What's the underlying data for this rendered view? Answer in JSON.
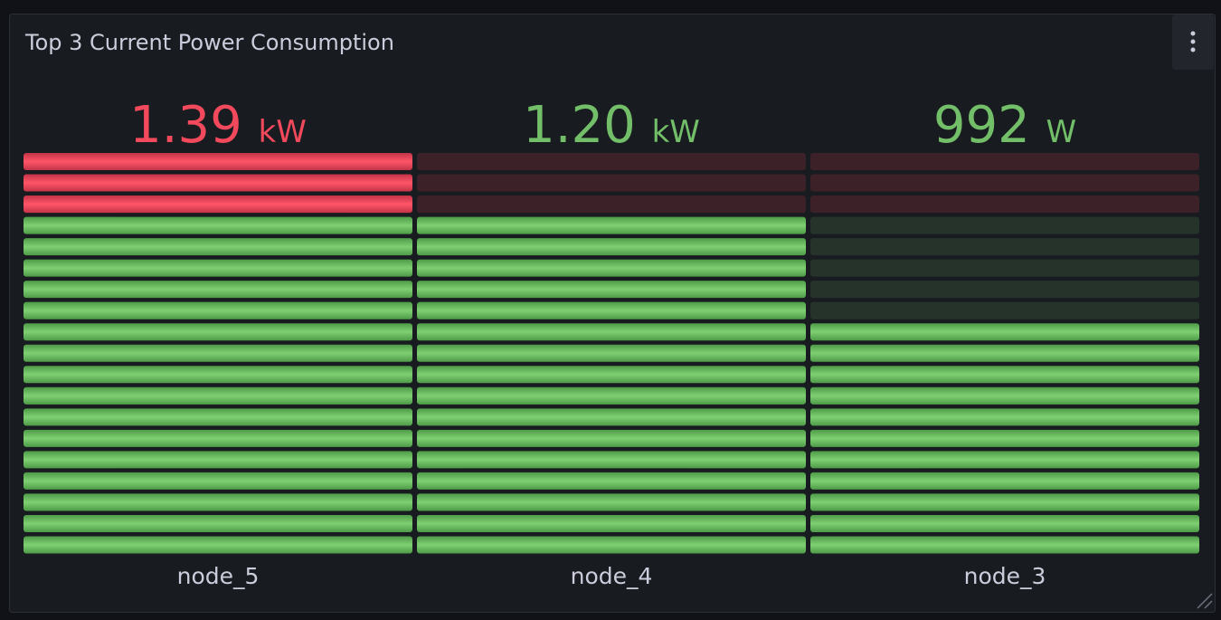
{
  "panel": {
    "title": "Top 3 Current Power Consumption"
  },
  "chart_data": {
    "type": "bar-gauge",
    "categories": [
      "node_5",
      "node_4",
      "node_3"
    ],
    "values": [
      1390,
      1200,
      992
    ],
    "value_labels": [
      "1.39 kW",
      "1.20 kW",
      "992 W"
    ],
    "ylim": [
      500,
      1300
    ],
    "cells": 19,
    "color": "#73bf69",
    "thresholds": [
      {
        "value": 1210,
        "color": "#f2495c"
      }
    ]
  }
}
